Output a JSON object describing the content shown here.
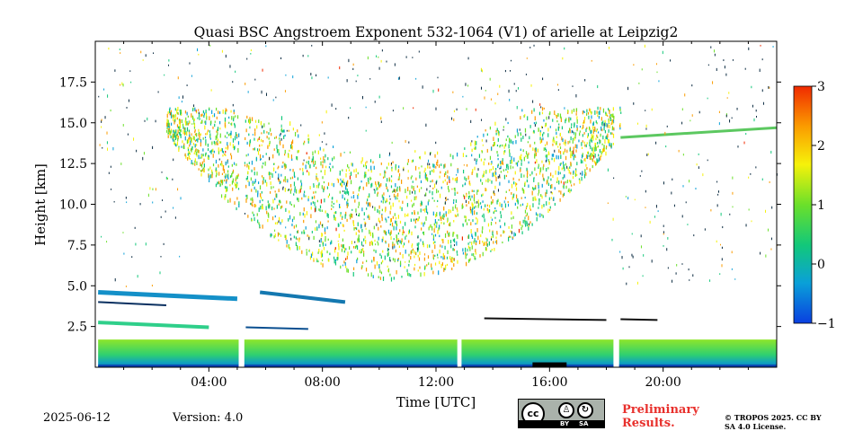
{
  "chart_data": {
    "type": "heatmap",
    "title": "Quasi BSC Angstroem Exponent 532-1064 (V1) of arielle at Leipzig2",
    "xlabel": "Time [UTC]",
    "ylabel": "Height [km]",
    "xlim": [
      0,
      24
    ],
    "ylim": [
      0,
      20
    ],
    "x_ticks": [
      {
        "value": 4,
        "label": "04:00"
      },
      {
        "value": 8,
        "label": "08:00"
      },
      {
        "value": 12,
        "label": "12:00"
      },
      {
        "value": 16,
        "label": "16:00"
      },
      {
        "value": 20,
        "label": "20:00"
      }
    ],
    "y_ticks": [
      {
        "value": 2.5,
        "label": "2.5"
      },
      {
        "value": 5.0,
        "label": "5.0"
      },
      {
        "value": 7.5,
        "label": "7.5"
      },
      {
        "value": 10.0,
        "label": "10.0"
      },
      {
        "value": 12.5,
        "label": "12.5"
      },
      {
        "value": 15.0,
        "label": "15.0"
      },
      {
        "value": 17.5,
        "label": "17.5"
      }
    ],
    "colorbar": {
      "range": [
        -1,
        3
      ],
      "ticks": [
        {
          "value": 3,
          "label": "3"
        },
        {
          "value": 2,
          "label": "2"
        },
        {
          "value": 1,
          "label": "1"
        },
        {
          "value": 0,
          "label": "0"
        },
        {
          "value": -1,
          "label": "−1"
        }
      ],
      "colormap": [
        "#0a3fe0",
        "#0aa0d8",
        "#12c87a",
        "#6be02a",
        "#f6f20a",
        "#fb9c00",
        "#f02a00"
      ]
    },
    "data_gaps_utc": [
      [
        5.05,
        5.25
      ],
      [
        12.75,
        12.9
      ],
      [
        18.25,
        18.45
      ]
    ],
    "features": [
      {
        "name": "boundary-layer",
        "x_range": [
          0,
          24
        ],
        "y_top": 1.7,
        "value": 0.8
      },
      {
        "name": "lower-layer-2.5km",
        "x_range": [
          0,
          4
        ],
        "y_range": [
          2.4,
          2.9
        ],
        "value": 0.4
      },
      {
        "name": "lower-layer-4.5km",
        "x_range": [
          0,
          9
        ],
        "y_range": [
          4.0,
          4.8
        ],
        "value": -0.2
      },
      {
        "name": "cirrus-layer",
        "x_range": [
          2,
          18
        ],
        "y_range": [
          6,
          14
        ],
        "value": 1.2
      },
      {
        "name": "upper-layer-14.5km",
        "x_range": [
          18.5,
          24
        ],
        "y_range": [
          14,
          14.8
        ],
        "value": 0.7
      }
    ]
  },
  "footer": {
    "date": "2025-06-12",
    "version": "Version: 4.0",
    "preliminary": "Preliminary Results.",
    "copyright": "© TROPOS 2025. CC BY SA 4.0 License.",
    "license_badge": {
      "cc": "cc",
      "by": "BY",
      "sa": "SA"
    }
  }
}
